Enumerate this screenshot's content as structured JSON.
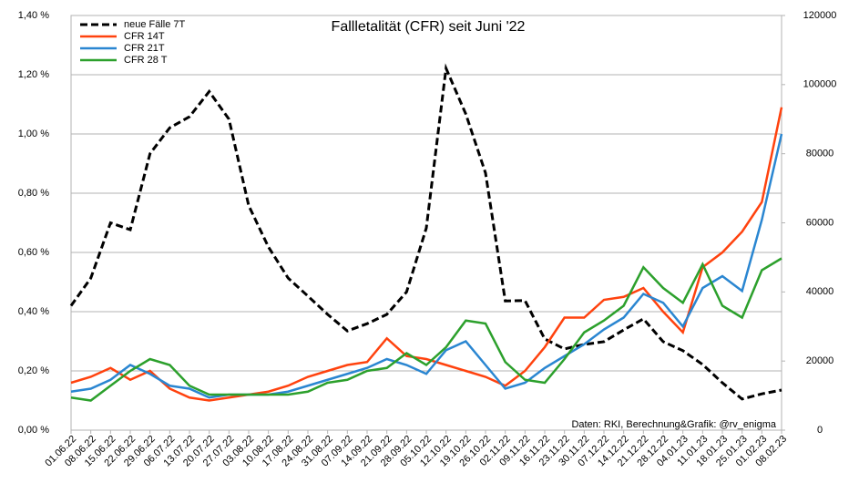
{
  "chart_data": {
    "type": "line",
    "title": "Fallletalität (CFR) seit Juni '22",
    "annotation": "Daten: RKI, Berechnung&Grafik: @rv_enigma",
    "categories": [
      "01.06.22",
      "08.06.22",
      "15.06.22",
      "22.06.22",
      "29.06.22",
      "06.07.22",
      "13.07.22",
      "20.07.22",
      "27.07.22",
      "03.08.22",
      "10.08.22",
      "17.08.22",
      "24.08.22",
      "31.08.22",
      "07.09.22",
      "14.09.22",
      "21.09.22",
      "28.09.22",
      "05.10.22",
      "12.10.22",
      "19.10.22",
      "26.10.22",
      "02.11.22",
      "09.11.22",
      "16.11.22",
      "23.11.22",
      "30.11.22",
      "07.12.22",
      "14.12.22",
      "21.12.22",
      "28.12.22",
      "04.01.23",
      "11.01.23",
      "18.01.23",
      "25.01.23",
      "01.02.23",
      "08.02.23"
    ],
    "series": [
      {
        "name": "neue Fälle 7T",
        "color": "#000000",
        "dashed": true,
        "axis": "y2",
        "values": [
          36000,
          44000,
          60000,
          58000,
          80000,
          87500,
          90700,
          98000,
          90000,
          65000,
          53000,
          44000,
          38800,
          33500,
          28700,
          30800,
          33500,
          40000,
          58500,
          104700,
          91500,
          74400,
          37400,
          37500,
          26400,
          23500,
          24800,
          25600,
          29000,
          32200,
          25600,
          23000,
          19000,
          13700,
          9000,
          10500,
          11600
        ]
      },
      {
        "name": "CFR 14T",
        "color": "#ff420e",
        "values": [
          0.16,
          0.18,
          0.21,
          0.17,
          0.2,
          0.14,
          0.11,
          0.1,
          0.11,
          0.12,
          0.13,
          0.15,
          0.18,
          0.2,
          0.22,
          0.23,
          0.31,
          0.25,
          0.24,
          0.22,
          0.2,
          0.18,
          0.15,
          0.2,
          0.28,
          0.38,
          0.38,
          0.44,
          0.45,
          0.48,
          0.4,
          0.33,
          0.55,
          0.6,
          0.67,
          0.77,
          1.09
        ]
      },
      {
        "name": "CFR 21T",
        "color": "#2a86d1",
        "values": [
          0.13,
          0.14,
          0.17,
          0.22,
          0.19,
          0.15,
          0.14,
          0.11,
          0.12,
          0.12,
          0.12,
          0.13,
          0.15,
          0.17,
          0.19,
          0.21,
          0.24,
          0.22,
          0.19,
          0.27,
          0.3,
          0.22,
          0.14,
          0.16,
          0.21,
          0.25,
          0.29,
          0.34,
          0.38,
          0.46,
          0.43,
          0.35,
          0.48,
          0.52,
          0.47,
          0.71,
          1.0
        ]
      },
      {
        "name": "CFR 28 T",
        "color": "#2ca02c",
        "values": [
          0.11,
          0.1,
          0.15,
          0.2,
          0.24,
          0.22,
          0.15,
          0.12,
          0.12,
          0.12,
          0.12,
          0.12,
          0.13,
          0.16,
          0.17,
          0.2,
          0.21,
          0.26,
          0.22,
          0.28,
          0.37,
          0.36,
          0.23,
          0.17,
          0.16,
          0.24,
          0.33,
          0.37,
          0.42,
          0.55,
          0.48,
          0.43,
          0.56,
          0.42,
          0.38,
          0.54,
          0.58
        ]
      }
    ],
    "ylim": [
      0,
      1.4
    ],
    "yticks": [
      {
        "value": 0,
        "label": "0,00 %"
      },
      {
        "value": 0.2,
        "label": "0,20 %"
      },
      {
        "value": 0.4,
        "label": "0,40 %"
      },
      {
        "value": 0.6,
        "label": "0,60 %"
      },
      {
        "value": 0.8,
        "label": "0,80 %"
      },
      {
        "value": 1.0,
        "label": "1,00 %"
      },
      {
        "value": 1.2,
        "label": "1,20 %"
      },
      {
        "value": 1.4,
        "label": "1,40 %"
      }
    ],
    "y2lim": [
      0,
      120000
    ],
    "y2ticks": [
      0,
      20000,
      40000,
      60000,
      80000,
      100000,
      120000
    ],
    "grid": true,
    "legend": "top-left"
  }
}
